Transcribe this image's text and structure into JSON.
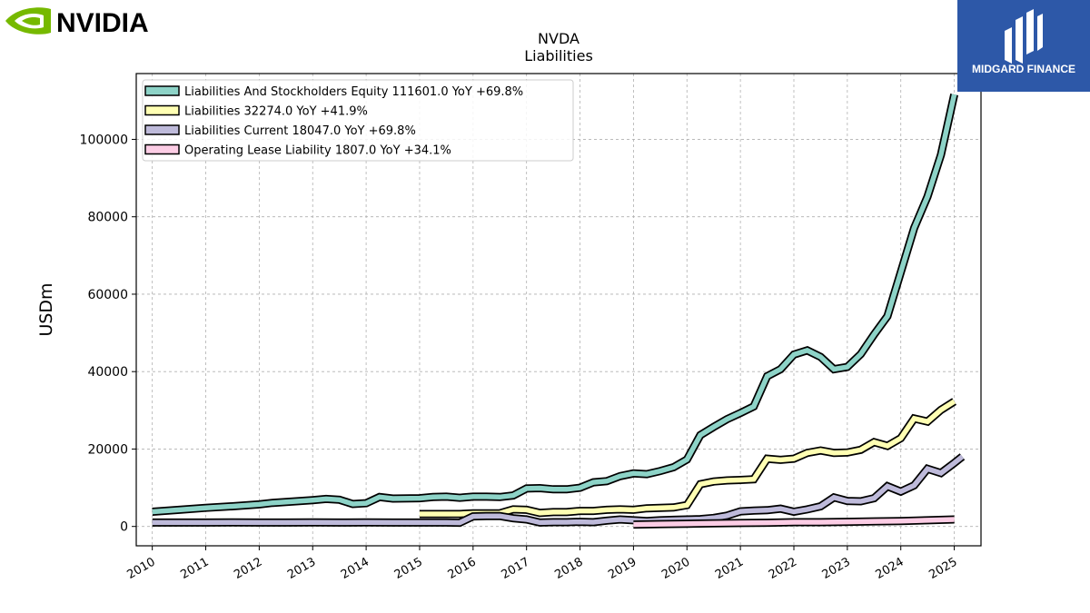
{
  "brand": {
    "left_logo_text": "NVIDIA",
    "right_logo_text": "MIDGARD FINANCE",
    "nvidia_green": "#76b900",
    "midgard_blue": "#2d58a8"
  },
  "chart_data": {
    "type": "line",
    "title": "NVDA",
    "subtitle": "Liabilities",
    "xlabel": "",
    "ylabel": "USDm",
    "grid": true,
    "legend_position": "top-left",
    "xlim": [
      2009.7,
      2025.5
    ],
    "ylim": [
      -5000,
      117000
    ],
    "xticks": [
      2010,
      2011,
      2012,
      2013,
      2014,
      2015,
      2016,
      2017,
      2018,
      2019,
      2020,
      2021,
      2022,
      2023,
      2024,
      2025
    ],
    "xtick_labels": [
      "2010",
      "2011",
      "2012",
      "2013",
      "2014",
      "2015",
      "2016",
      "2017",
      "2018",
      "2019",
      "2020",
      "2021",
      "2022",
      "2023",
      "2024",
      "2025"
    ],
    "yticks": [
      0,
      20000,
      40000,
      60000,
      80000,
      100000
    ],
    "ytick_labels": [
      "0",
      "20000",
      "40000",
      "60000",
      "80000",
      "100000"
    ],
    "series": [
      {
        "name": "Liabilities And Stockholders Equity",
        "legend_label": "Liabilities And Stockholders Equity  111601.0 YoY +69.8%",
        "color": "#8dd3c7",
        "points": [
          [
            2010.0,
            3800
          ],
          [
            2010.5,
            4300
          ],
          [
            2011.0,
            4800
          ],
          [
            2011.5,
            5200
          ],
          [
            2012.0,
            5700
          ],
          [
            2012.25,
            6100
          ],
          [
            2012.5,
            6300
          ],
          [
            2013.0,
            6800
          ],
          [
            2013.25,
            7100
          ],
          [
            2013.5,
            6900
          ],
          [
            2013.75,
            5800
          ],
          [
            2014.0,
            6000
          ],
          [
            2014.25,
            7600
          ],
          [
            2014.5,
            7200
          ],
          [
            2015.0,
            7300
          ],
          [
            2015.25,
            7600
          ],
          [
            2015.5,
            7700
          ],
          [
            2015.75,
            7400
          ],
          [
            2016.0,
            7700
          ],
          [
            2016.25,
            7700
          ],
          [
            2016.5,
            7600
          ],
          [
            2016.75,
            8000
          ],
          [
            2017.0,
            9800
          ],
          [
            2017.25,
            9900
          ],
          [
            2017.5,
            9600
          ],
          [
            2017.75,
            9600
          ],
          [
            2018.0,
            10000
          ],
          [
            2018.25,
            11400
          ],
          [
            2018.5,
            11700
          ],
          [
            2018.75,
            13000
          ],
          [
            2019.0,
            13700
          ],
          [
            2019.25,
            13500
          ],
          [
            2019.5,
            14300
          ],
          [
            2019.75,
            15300
          ],
          [
            2020.0,
            17300
          ],
          [
            2020.25,
            23600
          ],
          [
            2020.5,
            25700
          ],
          [
            2020.75,
            27700
          ],
          [
            2021.0,
            29300
          ],
          [
            2021.25,
            31000
          ],
          [
            2021.5,
            38800
          ],
          [
            2021.75,
            40600
          ],
          [
            2022.0,
            44400
          ],
          [
            2022.25,
            45500
          ],
          [
            2022.5,
            43800
          ],
          [
            2022.75,
            40600
          ],
          [
            2023.0,
            41200
          ],
          [
            2023.25,
            44500
          ],
          [
            2023.5,
            49600
          ],
          [
            2023.75,
            54300
          ],
          [
            2024.0,
            65700
          ],
          [
            2024.25,
            77100
          ],
          [
            2024.5,
            85200
          ],
          [
            2024.75,
            96000
          ],
          [
            2025.0,
            111601
          ]
        ]
      },
      {
        "name": "Liabilities",
        "legend_label": "Liabilities  32274.0 YoY +41.9%",
        "color": "#ffffb3",
        "points": [
          [
            2015.0,
            3200
          ],
          [
            2015.25,
            3200
          ],
          [
            2015.5,
            3200
          ],
          [
            2015.75,
            3200
          ],
          [
            2016.0,
            3400
          ],
          [
            2016.25,
            3400
          ],
          [
            2016.5,
            3400
          ],
          [
            2016.75,
            4400
          ],
          [
            2017.0,
            4300
          ],
          [
            2017.25,
            3500
          ],
          [
            2017.5,
            3700
          ],
          [
            2017.75,
            3700
          ],
          [
            2018.0,
            4000
          ],
          [
            2018.25,
            4000
          ],
          [
            2018.5,
            4300
          ],
          [
            2018.75,
            4400
          ],
          [
            2019.0,
            4300
          ],
          [
            2019.25,
            4700
          ],
          [
            2019.5,
            4800
          ],
          [
            2019.75,
            4900
          ],
          [
            2020.0,
            5500
          ],
          [
            2020.25,
            10900
          ],
          [
            2020.5,
            11600
          ],
          [
            2020.75,
            11900
          ],
          [
            2021.0,
            12000
          ],
          [
            2021.25,
            12200
          ],
          [
            2021.5,
            17500
          ],
          [
            2021.75,
            17200
          ],
          [
            2022.0,
            17500
          ],
          [
            2022.25,
            19000
          ],
          [
            2022.5,
            19600
          ],
          [
            2022.75,
            19000
          ],
          [
            2023.0,
            19100
          ],
          [
            2023.25,
            19800
          ],
          [
            2023.5,
            21800
          ],
          [
            2023.75,
            20800
          ],
          [
            2024.0,
            22800
          ],
          [
            2024.25,
            27900
          ],
          [
            2024.5,
            27100
          ],
          [
            2024.75,
            30100
          ],
          [
            2025.0,
            32274
          ]
        ]
      },
      {
        "name": "Liabilities Current",
        "legend_label": "Liabilities Current  18047.0 YoY +69.8%",
        "color": "#bebada",
        "points": [
          [
            2010.0,
            1000
          ],
          [
            2010.5,
            1000
          ],
          [
            2011.0,
            1000
          ],
          [
            2011.5,
            1050
          ],
          [
            2012.0,
            1000
          ],
          [
            2012.5,
            1000
          ],
          [
            2013.0,
            1050
          ],
          [
            2013.5,
            1000
          ],
          [
            2014.0,
            1050
          ],
          [
            2014.5,
            1000
          ],
          [
            2015.0,
            1000
          ],
          [
            2015.5,
            1000
          ],
          [
            2015.75,
            950
          ],
          [
            2016.0,
            2600
          ],
          [
            2016.25,
            2700
          ],
          [
            2016.5,
            2700
          ],
          [
            2016.75,
            2100
          ],
          [
            2017.0,
            1800
          ],
          [
            2017.25,
            1000
          ],
          [
            2017.5,
            1100
          ],
          [
            2017.75,
            1100
          ],
          [
            2018.0,
            1200
          ],
          [
            2018.25,
            1100
          ],
          [
            2018.5,
            1500
          ],
          [
            2018.75,
            1800
          ],
          [
            2019.0,
            1600
          ],
          [
            2019.25,
            1400
          ],
          [
            2019.5,
            1600
          ],
          [
            2019.75,
            1700
          ],
          [
            2020.0,
            1800
          ],
          [
            2020.25,
            1900
          ],
          [
            2020.5,
            2200
          ],
          [
            2020.75,
            2800
          ],
          [
            2021.0,
            3900
          ],
          [
            2021.25,
            4100
          ],
          [
            2021.5,
            4200
          ],
          [
            2021.75,
            4600
          ],
          [
            2022.0,
            3800
          ],
          [
            2022.25,
            4400
          ],
          [
            2022.5,
            5200
          ],
          [
            2022.75,
            7500
          ],
          [
            2023.0,
            6600
          ],
          [
            2023.25,
            6500
          ],
          [
            2023.5,
            7300
          ],
          [
            2023.75,
            10400
          ],
          [
            2024.0,
            9000
          ],
          [
            2024.25,
            10600
          ],
          [
            2024.5,
            14900
          ],
          [
            2024.75,
            13800
          ],
          [
            2025.0,
            16400
          ],
          [
            2025.15,
            18047
          ]
        ]
      },
      {
        "name": "Operating Lease Liability",
        "legend_label": "Operating Lease Liability  1807.0 YoY +34.1%",
        "color": "#fccde5",
        "points": [
          [
            2019.0,
            500
          ],
          [
            2019.5,
            600
          ],
          [
            2020.0,
            700
          ],
          [
            2020.5,
            800
          ],
          [
            2021.0,
            900
          ],
          [
            2021.5,
            950
          ],
          [
            2022.0,
            1100
          ],
          [
            2022.5,
            1100
          ],
          [
            2023.0,
            1200
          ],
          [
            2023.5,
            1300
          ],
          [
            2024.0,
            1400
          ],
          [
            2024.5,
            1600
          ],
          [
            2025.0,
            1807
          ]
        ]
      }
    ]
  }
}
